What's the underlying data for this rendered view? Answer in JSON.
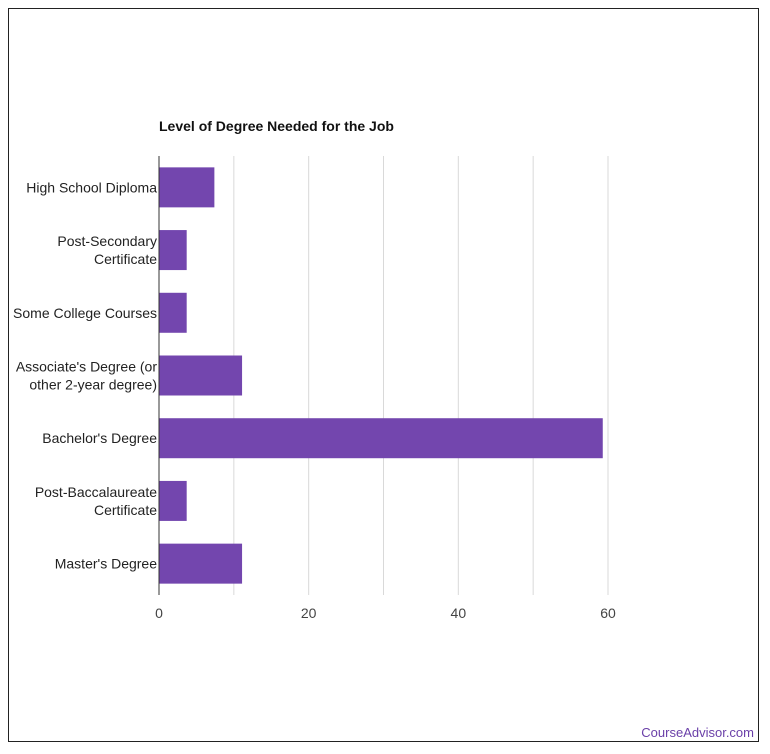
{
  "credit": "CourseAdvisor.com",
  "chart_data": {
    "type": "bar",
    "orientation": "horizontal",
    "title": "Level of Degree Needed for the Job",
    "categories": [
      [
        "High School Diploma"
      ],
      [
        "Post-Secondary",
        "Certificate"
      ],
      [
        "Some College Courses"
      ],
      [
        "Associate's Degree (or",
        "other 2-year degree)"
      ],
      [
        "Bachelor's Degree"
      ],
      [
        "Post-Baccalaureate",
        "Certificate"
      ],
      [
        "Master's Degree"
      ]
    ],
    "values": [
      7.4,
      3.7,
      3.7,
      11.1,
      59.3,
      3.7,
      11.1
    ],
    "xlim": [
      0,
      60
    ],
    "ticks": [
      0,
      20,
      40,
      60
    ],
    "gridlines": [
      10,
      20,
      30,
      40,
      50,
      60
    ],
    "bar_color": "#7346ae",
    "xlabel": "",
    "ylabel": ""
  }
}
